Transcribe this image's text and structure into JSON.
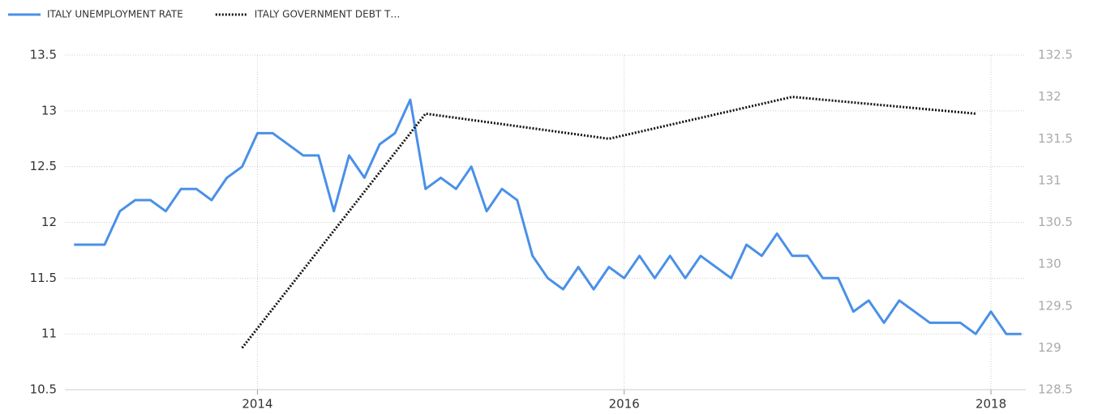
{
  "chart_data": {
    "type": "line",
    "xlim": [
      2012.95,
      2018.19
    ],
    "xticks": [
      2014,
      2016,
      2018
    ],
    "ylim": [
      10.5,
      13.5
    ],
    "yticks": [
      10.5,
      11,
      11.5,
      12,
      12.5,
      13,
      13.5
    ],
    "y2lim": [
      128.5,
      132.5
    ],
    "y2ticks": [
      128.5,
      129,
      129.5,
      130,
      130.5,
      131,
      131.5,
      132,
      132.5
    ],
    "grid": true,
    "legend": "top-left",
    "series": [
      {
        "name": "ITALY UNEMPLOYMENT RATE",
        "color": "#4a90e8",
        "dash": "solid",
        "axis": "y",
        "x": [
          "2013-01",
          "2013-02",
          "2013-03",
          "2013-04",
          "2013-05",
          "2013-06",
          "2013-07",
          "2013-08",
          "2013-09",
          "2013-10",
          "2013-11",
          "2013-12",
          "2014-01",
          "2014-02",
          "2014-03",
          "2014-04",
          "2014-05",
          "2014-06",
          "2014-07",
          "2014-08",
          "2014-09",
          "2014-10",
          "2014-11",
          "2014-12",
          "2015-01",
          "2015-02",
          "2015-03",
          "2015-04",
          "2015-05",
          "2015-06",
          "2015-07",
          "2015-08",
          "2015-09",
          "2015-10",
          "2015-11",
          "2015-12",
          "2016-01",
          "2016-02",
          "2016-03",
          "2016-04",
          "2016-05",
          "2016-06",
          "2016-07",
          "2016-08",
          "2016-09",
          "2016-10",
          "2016-11",
          "2016-12",
          "2017-01",
          "2017-02",
          "2017-03",
          "2017-04",
          "2017-05",
          "2017-06",
          "2017-07",
          "2017-08",
          "2017-09",
          "2017-10",
          "2017-11",
          "2017-12",
          "2018-01",
          "2018-02",
          "2018-03"
        ],
        "values": [
          11.8,
          11.8,
          11.8,
          12.1,
          12.2,
          12.2,
          12.1,
          12.3,
          12.3,
          12.2,
          12.4,
          12.5,
          12.8,
          12.8,
          12.7,
          12.6,
          12.6,
          12.1,
          12.6,
          12.4,
          12.7,
          12.8,
          13.1,
          12.3,
          12.4,
          12.3,
          12.5,
          12.1,
          12.3,
          12.2,
          11.7,
          11.5,
          11.4,
          11.6,
          11.4,
          11.6,
          11.5,
          11.7,
          11.5,
          11.7,
          11.5,
          11.7,
          11.6,
          11.5,
          11.8,
          11.7,
          11.9,
          11.7,
          11.7,
          11.5,
          11.5,
          11.2,
          11.3,
          11.1,
          11.3,
          11.2,
          11.1,
          11.1,
          11.1,
          11.0,
          11.2,
          11.0,
          11.0
        ]
      },
      {
        "name": "ITALY GOVERNMENT DEBT T…",
        "color": "#111111",
        "dash": "dotted",
        "axis": "y2",
        "x": [
          "2013-12",
          "2014-12",
          "2015-12",
          "2016-12",
          "2017-12"
        ],
        "values": [
          129.0,
          131.8,
          131.5,
          132.0,
          131.8
        ]
      }
    ]
  }
}
